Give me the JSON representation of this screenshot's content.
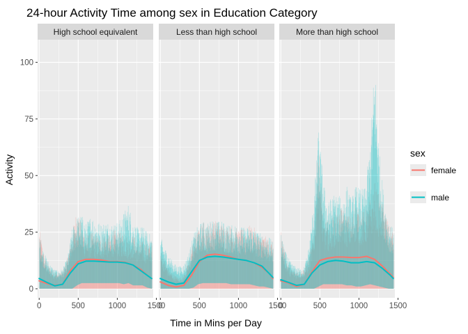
{
  "chart_data": {
    "type": "area",
    "title": "24-hour Activity Time among sex in Education Category",
    "xlabel": "Time in Mins per Day",
    "ylabel": "Activity",
    "xlim": [
      -20,
      1460
    ],
    "ylim": [
      -4,
      110
    ],
    "x_ticks": [
      0,
      500,
      1000,
      1500
    ],
    "x_tick_labels": [
      "0",
      "500",
      "1000",
      "1500"
    ],
    "y_ticks": [
      0,
      25,
      50,
      75,
      100
    ],
    "y_tick_labels": [
      "0",
      "25",
      "50",
      "75",
      "100"
    ],
    "grid": true,
    "legend": {
      "title": "sex",
      "placement": "right",
      "entries": [
        "female",
        "male"
      ]
    },
    "colors": {
      "female": "#f8766d",
      "male": "#00bfc4"
    },
    "facets": [
      {
        "label": "High school equivalent",
        "series": [
          {
            "name": "female",
            "mean_x": [
              0,
              100,
              200,
              300,
              400,
              500,
              600,
              700,
              800,
              900,
              1000,
              1100,
              1200,
              1300,
              1400,
              1440
            ],
            "mean": [
              3.5,
              2.3,
              1.5,
              2.0,
              8.0,
              12.0,
              13.0,
              13.0,
              12.7,
              12.0,
              12.0,
              11.7,
              10.5,
              8.5,
              5.5,
              4.5
            ],
            "band_x": [
              0,
              60,
              120,
              180,
              240,
              300,
              360,
              420,
              480,
              540,
              600,
              660,
              720,
              780,
              840,
              900,
              960,
              1020,
              1080,
              1140,
              1200,
              1260,
              1320,
              1380,
              1440
            ],
            "band_high": [
              27,
              15,
              10,
              8,
              7,
              8,
              14,
              25,
              36,
              28,
              24,
              25,
              24,
              23,
              25,
              24,
              26,
              25,
              25,
              23,
              24,
              21,
              21,
              20,
              21
            ],
            "band_low": [
              0,
              0,
              0,
              0,
              0,
              0,
              0,
              0,
              0,
              0,
              0,
              0,
              0,
              0,
              0,
              0,
              0,
              0,
              0,
              0,
              0,
              0,
              0,
              0,
              0
            ]
          },
          {
            "name": "male",
            "mean_x": [
              0,
              100,
              200,
              300,
              400,
              500,
              600,
              700,
              800,
              900,
              1000,
              1100,
              1200,
              1300,
              1400,
              1440
            ],
            "mean": [
              4.5,
              2.8,
              1.3,
              2.0,
              7.0,
              11.0,
              12.2,
              12.2,
              12.0,
              11.8,
              11.8,
              11.5,
              10.5,
              8.0,
              5.5,
              4.5
            ],
            "band_x": [
              0,
              60,
              120,
              180,
              240,
              300,
              360,
              420,
              480,
              540,
              600,
              660,
              720,
              780,
              840,
              900,
              960,
              1020,
              1080,
              1140,
              1200,
              1260,
              1320,
              1380,
              1440
            ],
            "band_high": [
              24,
              16,
              12,
              9,
              8,
              9,
              14,
              27,
              32,
              33,
              29,
              33,
              31,
              29,
              30,
              30,
              29,
              30,
              34,
              38,
              30,
              27,
              28,
              25,
              24
            ],
            "band_low": [
              0,
              0,
              0,
              0,
              0,
              0,
              0,
              0,
              1.5,
              2.5,
              2.5,
              2.5,
              2.5,
              2.5,
              2.5,
              2.5,
              2.5,
              2.5,
              2.0,
              2.5,
              1.5,
              1.5,
              1.5,
              0.5,
              0
            ]
          }
        ]
      },
      {
        "label": "Less than high school",
        "series": [
          {
            "name": "female",
            "mean_x": [
              0,
              100,
              200,
              300,
              400,
              500,
              600,
              700,
              800,
              900,
              1000,
              1100,
              1200,
              1300,
              1400,
              1440
            ],
            "mean": [
              3.0,
              1.5,
              0.8,
              1.5,
              6.0,
              12.0,
              14.8,
              15.3,
              14.8,
              14.0,
              13.0,
              12.5,
              11.5,
              9.5,
              6.5,
              4.5
            ],
            "band_x": [
              0,
              60,
              120,
              180,
              240,
              300,
              360,
              420,
              480,
              540,
              600,
              660,
              720,
              780,
              840,
              900,
              960,
              1020,
              1080,
              1140,
              1200,
              1260,
              1320,
              1380,
              1440
            ],
            "band_high": [
              17,
              12,
              8,
              6,
              5,
              6,
              12,
              22,
              26,
              30,
              28,
              31,
              30,
              29,
              28,
              28,
              27,
              26,
              27,
              28,
              27,
              24,
              24,
              22,
              21
            ],
            "band_low": [
              0,
              0,
              0,
              0,
              0,
              0,
              0,
              0,
              0,
              0,
              0,
              0,
              0,
              0,
              0,
              0,
              0,
              0,
              0,
              0,
              0,
              0,
              0,
              0,
              0
            ]
          },
          {
            "name": "male",
            "mean_x": [
              0,
              100,
              200,
              300,
              400,
              500,
              600,
              700,
              800,
              900,
              1000,
              1100,
              1200,
              1300,
              1400,
              1440
            ],
            "mean": [
              4.5,
              3.0,
              2.0,
              2.5,
              7.5,
              12.5,
              14.0,
              14.3,
              14.0,
              13.5,
              13.0,
              12.5,
              11.5,
              10.0,
              6.5,
              5.0
            ],
            "band_x": [
              0,
              60,
              120,
              180,
              240,
              300,
              360,
              420,
              480,
              540,
              600,
              660,
              720,
              780,
              840,
              900,
              960,
              1020,
              1080,
              1140,
              1200,
              1260,
              1320,
              1380,
              1440
            ],
            "band_high": [
              23,
              18,
              14,
              11,
              10,
              11,
              16,
              24,
              28,
              30,
              29,
              31,
              30,
              30,
              29,
              28,
              29,
              28,
              27,
              28,
              27,
              25,
              24,
              23,
              21
            ],
            "band_low": [
              0,
              0,
              0,
              0,
              0,
              0,
              0,
              0.5,
              2.0,
              2.5,
              2.5,
              2.5,
              2.5,
              2.5,
              2.5,
              2.0,
              2.0,
              2.0,
              2.0,
              2.0,
              1.5,
              1.0,
              1.0,
              0.5,
              0
            ]
          }
        ]
      },
      {
        "label": "More than high school",
        "series": [
          {
            "name": "female",
            "mean_x": [
              0,
              100,
              200,
              300,
              400,
              500,
              600,
              700,
              800,
              900,
              1000,
              1100,
              1200,
              1300,
              1400,
              1440
            ],
            "mean": [
              3.5,
              2.5,
              1.0,
              2.0,
              7.5,
              12.5,
              13.5,
              14.0,
              14.0,
              13.8,
              13.8,
              14.3,
              13.0,
              10.0,
              6.5,
              5.0
            ],
            "band_x": [
              0,
              60,
              120,
              180,
              240,
              300,
              360,
              420,
              480,
              540,
              600,
              660,
              720,
              780,
              840,
              900,
              960,
              1020,
              1080,
              1140,
              1200,
              1260,
              1320,
              1380,
              1440
            ],
            "band_high": [
              26,
              14,
              9,
              8,
              8,
              9,
              14,
              25,
              66,
              30,
              30,
              32,
              34,
              36,
              33,
              32,
              38,
              34,
              35,
              40,
              48,
              40,
              37,
              28,
              26
            ],
            "band_low": [
              0,
              0,
              0,
              0,
              0,
              0,
              0,
              0,
              0,
              0,
              0,
              0,
              0,
              0,
              0,
              0,
              0,
              0,
              0,
              0,
              0,
              0,
              0,
              0,
              0
            ]
          },
          {
            "name": "male",
            "mean_x": [
              0,
              100,
              200,
              300,
              400,
              500,
              600,
              700,
              800,
              900,
              1000,
              1100,
              1200,
              1300,
              1400,
              1440
            ],
            "mean": [
              4.0,
              2.8,
              1.5,
              2.0,
              7.0,
              10.5,
              12.0,
              12.5,
              12.2,
              11.5,
              11.5,
              12.0,
              11.5,
              9.0,
              6.0,
              4.5
            ],
            "band_x": [
              0,
              60,
              120,
              180,
              240,
              300,
              360,
              420,
              480,
              540,
              600,
              660,
              720,
              780,
              840,
              900,
              960,
              1020,
              1080,
              1140,
              1200,
              1260,
              1320,
              1380,
              1440
            ],
            "band_high": [
              24,
              16,
              12,
              10,
              9,
              10,
              20,
              40,
              72,
              48,
              38,
              42,
              42,
              40,
              46,
              40,
              46,
              44,
              45,
              65,
              103,
              60,
              40,
              30,
              26
            ],
            "band_low": [
              0,
              0,
              0,
              0,
              0,
              0,
              0,
              0,
              1.0,
              2.0,
              2.0,
              2.0,
              2.0,
              2.0,
              1.5,
              1.5,
              1.0,
              1.0,
              1.5,
              2.0,
              1.5,
              1.0,
              0.5,
              0,
              0
            ]
          }
        ]
      }
    ]
  }
}
